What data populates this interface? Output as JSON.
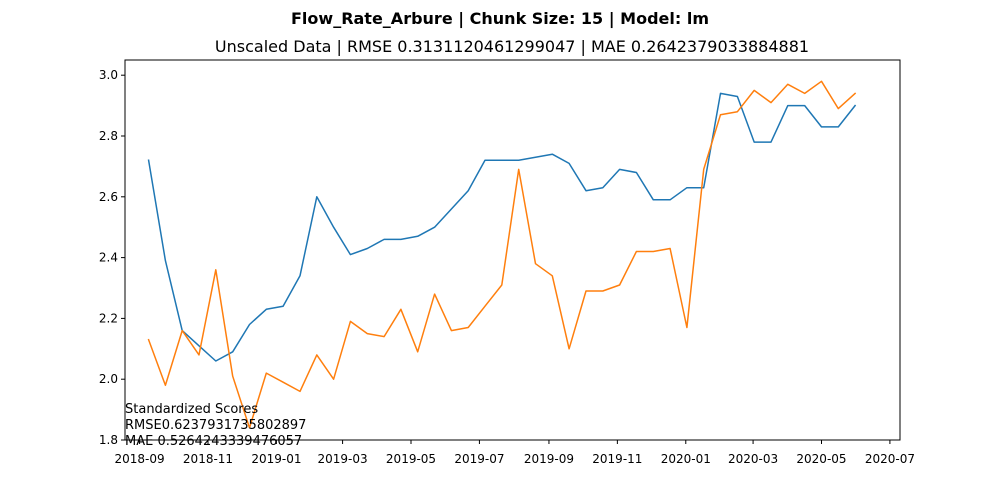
{
  "chart_data": {
    "type": "line",
    "suptitle": "Flow_Rate_Arbure | Chunk Size: 15 | Model: lm",
    "title": "Unscaled Data | RMSE 0.3131120461299047 | MAE 0.2642379033884881",
    "xlabel": "",
    "ylabel": "",
    "xlim": [
      "2018-08-19",
      "2020-07-10"
    ],
    "ylim": [
      1.8,
      3.05
    ],
    "x_ticks": [
      "2018-09",
      "2018-11",
      "2019-01",
      "2019-03",
      "2019-05",
      "2019-07",
      "2019-09",
      "2019-11",
      "2020-01",
      "2020-03",
      "2020-05",
      "2020-07"
    ],
    "y_ticks": [
      "1.8",
      "2.0",
      "2.2",
      "2.4",
      "2.6",
      "2.8",
      "3.0"
    ],
    "grid": false,
    "x": [
      "2018-09-09",
      "2018-09-24",
      "2018-10-09",
      "2018-10-24",
      "2018-11-08",
      "2018-11-23",
      "2018-12-08",
      "2018-12-23",
      "2019-01-07",
      "2019-01-22",
      "2019-02-06",
      "2019-02-21",
      "2019-03-08",
      "2019-03-23",
      "2019-04-07",
      "2019-04-22",
      "2019-05-07",
      "2019-05-22",
      "2019-06-06",
      "2019-06-21",
      "2019-07-06",
      "2019-07-21",
      "2019-08-05",
      "2019-08-20",
      "2019-09-04",
      "2019-09-19",
      "2019-10-04",
      "2019-10-19",
      "2019-11-03",
      "2019-11-18",
      "2019-12-03",
      "2019-12-18",
      "2020-01-02",
      "2020-01-17",
      "2020-02-01",
      "2020-02-16",
      "2020-03-02",
      "2020-03-17",
      "2020-04-01",
      "2020-04-16",
      "2020-05-01",
      "2020-05-16",
      "2020-05-31"
    ],
    "series": [
      {
        "color": "#1f77b4",
        "values": [
          2.72,
          2.39,
          2.16,
          2.11,
          2.06,
          2.09,
          2.18,
          2.23,
          2.24,
          2.34,
          2.6,
          2.5,
          2.41,
          2.43,
          2.46,
          2.46,
          2.47,
          2.5,
          2.56,
          2.62,
          2.72,
          2.72,
          2.72,
          2.73,
          2.74,
          2.71,
          2.62,
          2.63,
          2.69,
          2.68,
          2.59,
          2.59,
          2.63,
          2.63,
          2.94,
          2.93,
          2.78,
          2.78,
          2.9,
          2.9,
          2.83,
          2.83,
          2.9
        ]
      },
      {
        "color": "#ff7f0e",
        "values": [
          2.13,
          1.98,
          2.16,
          2.08,
          2.36,
          2.01,
          1.84,
          2.02,
          1.99,
          1.96,
          2.08,
          2.0,
          2.19,
          2.15,
          2.14,
          2.23,
          2.09,
          2.28,
          2.16,
          2.17,
          2.24,
          2.31,
          2.69,
          2.38,
          2.34,
          2.1,
          2.29,
          2.29,
          2.31,
          2.42,
          2.42,
          2.43,
          2.17,
          2.69,
          2.87,
          2.88,
          2.95,
          2.91,
          2.97,
          2.94,
          2.98,
          2.89,
          2.94
        ]
      }
    ],
    "annotation": {
      "lines": [
        "Standardized Scores",
        "RMSE0.6237931735802897",
        "MAE 0.5264243339476057"
      ]
    }
  }
}
